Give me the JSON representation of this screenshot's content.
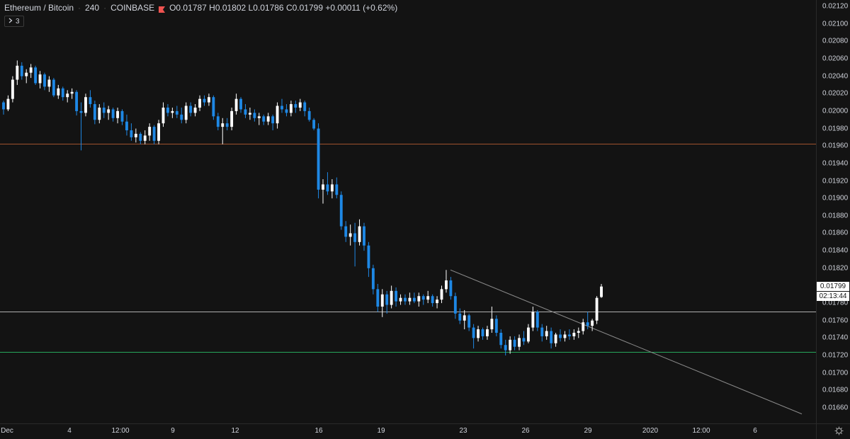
{
  "legend": {
    "symbol": "Ethereum / Bitcoin",
    "interval": "240",
    "exchange": "COINBASE",
    "open": "O0.01787",
    "high": "H0.01802",
    "low": "L0.01786",
    "close": "C0.01799",
    "change": "+0.00011 (+0.62%)"
  },
  "collapse": {
    "count": "3"
  },
  "colors": {
    "background": "#131313",
    "up": "#ffffff",
    "down": "#1e88e5",
    "line_red": "#a0522d",
    "line_white": "#b0b0b0",
    "line_green": "#26a65b",
    "trendline": "#8a8a8a"
  },
  "price_axis": {
    "ticks": [
      "0.02120",
      "0.02100",
      "0.02080",
      "0.02060",
      "0.02040",
      "0.02020",
      "0.02000",
      "0.01980",
      "0.01960",
      "0.01940",
      "0.01920",
      "0.01900",
      "0.01880",
      "0.01860",
      "0.01840",
      "0.01820",
      "0.01800",
      "0.01780",
      "0.01760",
      "0.01740",
      "0.01720",
      "0.01700",
      "0.01680",
      "0.01660"
    ],
    "last_price": "0.01799",
    "countdown": "02:13:44"
  },
  "time_axis": {
    "ticks": [
      "Dec",
      "4",
      "12:00",
      "9",
      "12",
      "16",
      "19",
      "23",
      "26",
      "29",
      "2020",
      "12:00",
      "6"
    ]
  },
  "chart_data": {
    "type": "candlestick",
    "y_range": [
      0.01645,
      0.02125
    ],
    "horizontal_lines": [
      0.01963,
      0.0177,
      0.01724
    ],
    "trendline": [
      [
        0.01818,
        0.01653
      ]
    ],
    "candles": [
      [
        0.0201,
        0.02012,
        0.01996,
        0.02002
      ],
      [
        0.02002,
        0.02018,
        0.02,
        0.02014
      ],
      [
        0.02014,
        0.0204,
        0.0201,
        0.02036
      ],
      [
        0.02036,
        0.02058,
        0.0203,
        0.02052
      ],
      [
        0.02052,
        0.02056,
        0.02036,
        0.0204
      ],
      [
        0.0204,
        0.02048,
        0.02032,
        0.02044
      ],
      [
        0.02044,
        0.02054,
        0.02038,
        0.0205
      ],
      [
        0.0205,
        0.02052,
        0.0203,
        0.02032
      ],
      [
        0.02032,
        0.02046,
        0.02026,
        0.02042
      ],
      [
        0.02042,
        0.02044,
        0.02024,
        0.02028
      ],
      [
        0.02028,
        0.0204,
        0.02022,
        0.02036
      ],
      [
        0.02036,
        0.02038,
        0.02016,
        0.02018
      ],
      [
        0.02018,
        0.0203,
        0.02014,
        0.02026
      ],
      [
        0.02026,
        0.02028,
        0.02012,
        0.02016
      ],
      [
        0.02016,
        0.02024,
        0.0201,
        0.0202
      ],
      [
        0.0202,
        0.02026,
        0.02014,
        0.02022
      ],
      [
        0.02022,
        0.02024,
        0.01995,
        0.02
      ],
      [
        0.02,
        0.0201,
        0.01955,
        0.01998
      ],
      [
        0.01998,
        0.0202,
        0.01994,
        0.02016
      ],
      [
        0.02016,
        0.02024,
        0.02004,
        0.02008
      ],
      [
        0.02008,
        0.02012,
        0.01985,
        0.0199
      ],
      [
        0.0199,
        0.02008,
        0.01986,
        0.02004
      ],
      [
        0.02004,
        0.0201,
        0.01992,
        0.01998
      ],
      [
        0.01998,
        0.02006,
        0.0199,
        0.02002
      ],
      [
        0.02002,
        0.02004,
        0.01988,
        0.01992
      ],
      [
        0.01992,
        0.02004,
        0.01986,
        0.02
      ],
      [
        0.02,
        0.02002,
        0.01984,
        0.01988
      ],
      [
        0.01988,
        0.01996,
        0.01972,
        0.01978
      ],
      [
        0.01978,
        0.01986,
        0.01966,
        0.0197
      ],
      [
        0.0197,
        0.0198,
        0.01964,
        0.01974
      ],
      [
        0.01974,
        0.01976,
        0.01962,
        0.01966
      ],
      [
        0.01966,
        0.01978,
        0.01962,
        0.01972
      ],
      [
        0.01972,
        0.01986,
        0.01966,
        0.01982
      ],
      [
        0.01982,
        0.01984,
        0.01962,
        0.01966
      ],
      [
        0.01966,
        0.0199,
        0.01962,
        0.01986
      ],
      [
        0.01986,
        0.0201,
        0.01982,
        0.02004
      ],
      [
        0.02004,
        0.02008,
        0.01994,
        0.01998
      ],
      [
        0.01998,
        0.02004,
        0.01992,
        0.02
      ],
      [
        0.02,
        0.02006,
        0.01992,
        0.01996
      ],
      [
        0.01996,
        0.02004,
        0.01986,
        0.0199
      ],
      [
        0.0199,
        0.0201,
        0.01986,
        0.02006
      ],
      [
        0.02006,
        0.0201,
        0.01994,
        0.01998
      ],
      [
        0.01998,
        0.02008,
        0.01994,
        0.02004
      ],
      [
        0.02004,
        0.02018,
        0.02,
        0.02014
      ],
      [
        0.02014,
        0.02018,
        0.02006,
        0.0201
      ],
      [
        0.0201,
        0.0202,
        0.02006,
        0.02016
      ],
      [
        0.02016,
        0.02018,
        0.0199,
        0.01994
      ],
      [
        0.01994,
        0.01998,
        0.01978,
        0.01982
      ],
      [
        0.01982,
        0.01992,
        0.01962,
        0.01986
      ],
      [
        0.01986,
        0.01992,
        0.01978,
        0.01982
      ],
      [
        0.01982,
        0.02004,
        0.01978,
        0.02
      ],
      [
        0.02,
        0.0202,
        0.01996,
        0.02014
      ],
      [
        0.02014,
        0.02016,
        0.01998,
        0.02002
      ],
      [
        0.02002,
        0.02008,
        0.01992,
        0.01996
      ],
      [
        0.01996,
        0.02004,
        0.0199,
        0.01998
      ],
      [
        0.01998,
        0.02002,
        0.01988,
        0.01992
      ],
      [
        0.01992,
        0.01998,
        0.01984,
        0.01994
      ],
      [
        0.01994,
        0.01996,
        0.01984,
        0.01988
      ],
      [
        0.01988,
        0.01998,
        0.01984,
        0.01994
      ],
      [
        0.01994,
        0.01996,
        0.01978,
        0.01986
      ],
      [
        0.01986,
        0.0201,
        0.0198,
        0.02006
      ],
      [
        0.02006,
        0.02014,
        0.01998,
        0.02002
      ],
      [
        0.02002,
        0.02008,
        0.01994,
        0.01998
      ],
      [
        0.01998,
        0.02012,
        0.01994,
        0.02008
      ],
      [
        0.02008,
        0.02012,
        0.01998,
        0.02004
      ],
      [
        0.02004,
        0.02014,
        0.02,
        0.0201
      ],
      [
        0.0201,
        0.02012,
        0.01994,
        0.02
      ],
      [
        0.02,
        0.02004,
        0.01988,
        0.0199
      ],
      [
        0.0199,
        0.01992,
        0.01978,
        0.0198
      ],
      [
        0.0198,
        0.01986,
        0.019,
        0.0191
      ],
      [
        0.0191,
        0.01922,
        0.01894,
        0.01916
      ],
      [
        0.01916,
        0.0193,
        0.01904,
        0.01908
      ],
      [
        0.01908,
        0.01922,
        0.019,
        0.01916
      ],
      [
        0.01916,
        0.01924,
        0.019,
        0.01904
      ],
      [
        0.01904,
        0.01908,
        0.01864,
        0.01868
      ],
      [
        0.01868,
        0.01874,
        0.0185,
        0.01856
      ],
      [
        0.01856,
        0.0187,
        0.01846,
        0.0186
      ],
      [
        0.0186,
        0.01872,
        0.01822,
        0.0185
      ],
      [
        0.0185,
        0.01876,
        0.01846,
        0.01868
      ],
      [
        0.01868,
        0.01872,
        0.0184,
        0.01846
      ],
      [
        0.01846,
        0.0185,
        0.0181,
        0.0182
      ],
      [
        0.0182,
        0.01824,
        0.0179,
        0.01796
      ],
      [
        0.01796,
        0.01802,
        0.0177,
        0.01776
      ],
      [
        0.01776,
        0.01796,
        0.01764,
        0.0179
      ],
      [
        0.0179,
        0.01794,
        0.01768,
        0.01778
      ],
      [
        0.01778,
        0.018,
        0.01774,
        0.01794
      ],
      [
        0.01794,
        0.01798,
        0.01776,
        0.01782
      ],
      [
        0.01782,
        0.0179,
        0.01778,
        0.01786
      ],
      [
        0.01786,
        0.0179,
        0.01778,
        0.01782
      ],
      [
        0.01782,
        0.01792,
        0.01778,
        0.01786
      ],
      [
        0.01786,
        0.01792,
        0.0178,
        0.01782
      ],
      [
        0.01782,
        0.01792,
        0.01776,
        0.01788
      ],
      [
        0.01788,
        0.0179,
        0.01778,
        0.01784
      ],
      [
        0.01784,
        0.01794,
        0.0178,
        0.01788
      ],
      [
        0.01788,
        0.0179,
        0.01776,
        0.0178
      ],
      [
        0.0178,
        0.01788,
        0.01774,
        0.01784
      ],
      [
        0.01784,
        0.018,
        0.0178,
        0.01796
      ],
      [
        0.01796,
        0.01818,
        0.01792,
        0.01806
      ],
      [
        0.01806,
        0.0181,
        0.01784,
        0.01788
      ],
      [
        0.01788,
        0.01792,
        0.01762,
        0.01768
      ],
      [
        0.01768,
        0.01774,
        0.01756,
        0.0176
      ],
      [
        0.0176,
        0.01772,
        0.0175,
        0.01766
      ],
      [
        0.01766,
        0.01768,
        0.01748,
        0.01752
      ],
      [
        0.01752,
        0.01756,
        0.01728,
        0.0174
      ],
      [
        0.0174,
        0.01754,
        0.01736,
        0.0175
      ],
      [
        0.0175,
        0.01752,
        0.01738,
        0.01742
      ],
      [
        0.01742,
        0.01754,
        0.01738,
        0.0175
      ],
      [
        0.0175,
        0.01776,
        0.01746,
        0.01762
      ],
      [
        0.01762,
        0.01766,
        0.01742,
        0.01746
      ],
      [
        0.01746,
        0.0175,
        0.01728,
        0.01732
      ],
      [
        0.01732,
        0.01738,
        0.0172,
        0.01726
      ],
      [
        0.01726,
        0.01742,
        0.01722,
        0.01738
      ],
      [
        0.01738,
        0.01742,
        0.01726,
        0.0173
      ],
      [
        0.0173,
        0.01744,
        0.01726,
        0.0174
      ],
      [
        0.0174,
        0.01748,
        0.01732,
        0.01736
      ],
      [
        0.01736,
        0.01756,
        0.01734,
        0.01752
      ],
      [
        0.01752,
        0.01776,
        0.01748,
        0.0177
      ],
      [
        0.0177,
        0.01772,
        0.01748,
        0.01752
      ],
      [
        0.01752,
        0.01756,
        0.01736,
        0.01742
      ],
      [
        0.01742,
        0.01754,
        0.01738,
        0.01748
      ],
      [
        0.01748,
        0.01752,
        0.01728,
        0.01734
      ],
      [
        0.01734,
        0.01746,
        0.0173,
        0.01744
      ],
      [
        0.01744,
        0.0175,
        0.01736,
        0.0174
      ],
      [
        0.0174,
        0.01748,
        0.01736,
        0.01744
      ],
      [
        0.01744,
        0.0175,
        0.01738,
        0.01742
      ],
      [
        0.01742,
        0.0175,
        0.01738,
        0.01746
      ],
      [
        0.01746,
        0.01752,
        0.0174,
        0.01748
      ],
      [
        0.01748,
        0.01762,
        0.01744,
        0.01758
      ],
      [
        0.01758,
        0.0177,
        0.0175,
        0.01754
      ],
      [
        0.01754,
        0.01762,
        0.01748,
        0.0176
      ],
      [
        0.0176,
        0.01788,
        0.01756,
        0.01786
      ],
      [
        0.01787,
        0.01802,
        0.01786,
        0.01799
      ]
    ]
  }
}
